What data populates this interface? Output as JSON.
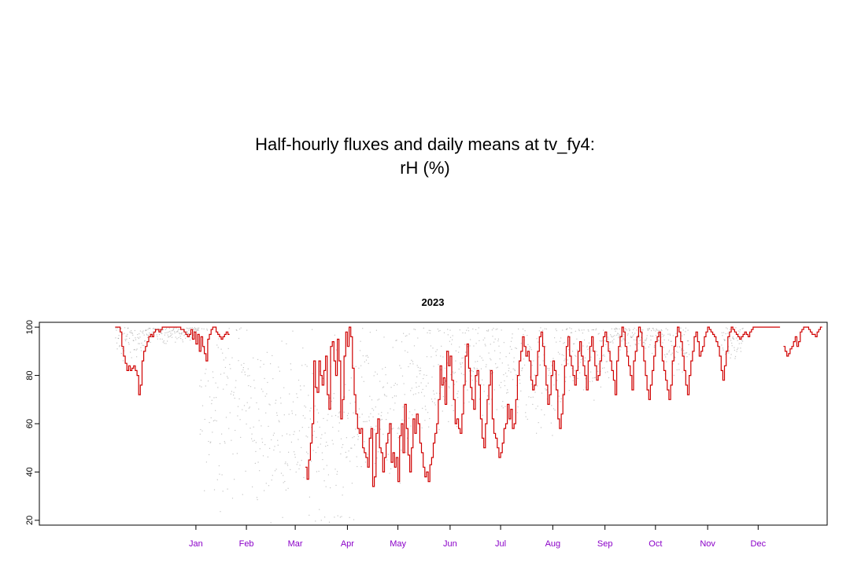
{
  "title_line1": "Half-hourly fluxes and daily means at tv_fy4:",
  "title_line2": "rH (%)",
  "chart_data": {
    "type": "line",
    "panel_title": "2023",
    "ylim": [
      18,
      102
    ],
    "y_ticks": [
      20,
      40,
      60,
      80,
      100
    ],
    "x_ticks": [
      "Jan",
      "Feb",
      "Mar",
      "Apr",
      "May",
      "Jun",
      "Jul",
      "Aug",
      "Sep",
      "Oct",
      "Nov",
      "Dec"
    ],
    "x_domain_days": [
      -78,
      390
    ],
    "series": [
      {
        "kind": "half-hourly",
        "color": "#7f7f7f",
        "segments": [
          [
            -33,
            -14,
            95,
            4
          ],
          [
            -14,
            17,
            98,
            2
          ],
          [
            17,
            47,
            72,
            18
          ],
          [
            47,
            79,
            60,
            17
          ],
          [
            79,
            109,
            55,
            18
          ],
          [
            109,
            140,
            68,
            15
          ],
          [
            140,
            170,
            78,
            13
          ],
          [
            170,
            201,
            84,
            11
          ],
          [
            201,
            232,
            82,
            12
          ],
          [
            232,
            262,
            89,
            8
          ],
          [
            262,
            293,
            97,
            3
          ],
          [
            293,
            308,
            92,
            5
          ],
          [
            327,
            340,
            95,
            4
          ]
        ]
      },
      {
        "kind": "daily-mean",
        "color": "#d00000",
        "x_start": -33,
        "values": [
          100,
          100,
          100,
          98,
          92,
          88,
          85,
          82,
          84,
          82,
          83,
          84,
          82,
          80,
          72,
          76,
          86,
          90,
          92,
          94,
          96,
          97,
          96,
          98,
          99,
          99,
          98,
          99,
          100,
          100,
          100,
          100,
          100,
          100,
          100,
          100,
          100,
          100,
          100,
          99,
          99,
          98,
          97,
          96,
          97,
          99,
          95,
          98,
          93,
          97,
          90,
          96,
          92,
          89,
          86,
          95,
          97,
          99,
          100,
          100,
          98,
          97,
          96,
          95,
          96,
          97,
          98,
          97,
          null,
          null,
          null,
          null,
          null,
          null,
          null,
          null,
          null,
          null,
          null,
          null,
          null,
          null,
          null,
          null,
          null,
          null,
          null,
          null,
          null,
          null,
          null,
          null,
          null,
          null,
          null,
          null,
          null,
          null,
          null,
          null,
          null,
          null,
          null,
          null,
          null,
          null,
          null,
          null,
          null,
          null,
          null,
          null,
          null,
          42,
          37,
          45,
          52,
          60,
          86,
          75,
          73,
          86,
          80,
          76,
          82,
          88,
          72,
          66,
          92,
          94,
          86,
          80,
          95,
          86,
          62,
          70,
          88,
          98,
          92,
          100,
          96,
          83,
          72,
          64,
          58,
          56,
          58,
          50,
          48,
          46,
          42,
          54,
          58,
          34,
          38,
          56,
          62,
          50,
          48,
          40,
          46,
          52,
          56,
          60,
          44,
          48,
          42,
          46,
          36,
          55,
          60,
          48,
          68,
          58,
          47,
          40,
          50,
          62,
          56,
          64,
          60,
          52,
          48,
          42,
          38,
          40,
          36,
          43,
          46,
          52,
          56,
          60,
          70,
          84,
          76,
          79,
          68,
          90,
          84,
          88,
          78,
          70,
          60,
          62,
          58,
          56,
          64,
          76,
          88,
          93,
          83,
          75,
          70,
          66,
          80,
          82,
          76,
          62,
          54,
          50,
          60,
          70,
          76,
          82,
          62,
          56,
          54,
          50,
          46,
          48,
          52,
          58,
          60,
          68,
          62,
          66,
          58,
          60,
          70,
          80,
          86,
          90,
          96,
          92,
          88,
          90,
          86,
          78,
          74,
          76,
          80,
          90,
          96,
          98,
          92,
          84,
          76,
          68,
          72,
          80,
          86,
          82,
          74,
          62,
          58,
          64,
          72,
          84,
          92,
          96,
          88,
          84,
          80,
          76,
          82,
          90,
          94,
          88,
          84,
          80,
          74,
          86,
          92,
          96,
          90,
          84,
          78,
          80,
          86,
          92,
          96,
          98,
          94,
          90,
          86,
          82,
          78,
          72,
          86,
          92,
          96,
          100,
          98,
          92,
          88,
          84,
          80,
          74,
          86,
          90,
          96,
          100,
          98,
          92,
          86,
          80,
          74,
          70,
          76,
          82,
          88,
          94,
          96,
          98,
          92,
          86,
          82,
          78,
          74,
          70,
          76,
          86,
          92,
          96,
          100,
          98,
          94,
          88,
          82,
          76,
          72,
          80,
          86,
          90,
          96,
          98,
          94,
          88,
          90,
          92,
          96,
          98,
          100,
          99,
          98,
          97,
          96,
          94,
          92,
          88,
          82,
          78,
          84,
          90,
          96,
          98,
          100,
          99,
          98,
          97,
          96,
          95,
          96,
          97,
          98,
          97,
          96,
          98,
          99,
          100,
          100,
          100,
          100,
          100,
          100,
          100,
          100,
          100,
          100,
          100,
          100,
          100,
          100,
          100,
          100,
          null,
          null,
          92,
          90,
          88,
          89,
          91,
          92,
          94,
          96,
          92,
          94,
          98,
          99,
          100,
          100,
          100,
          99,
          98,
          97,
          97,
          96,
          98,
          99,
          100
        ]
      }
    ]
  }
}
